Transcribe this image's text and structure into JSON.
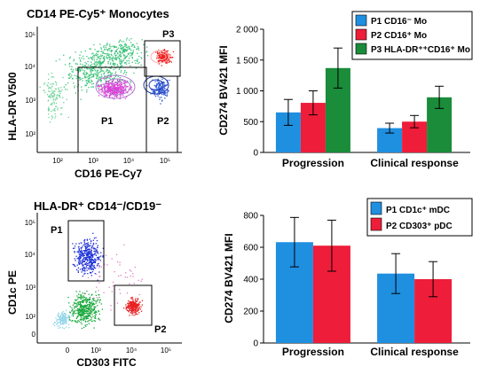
{
  "panels": {
    "tl": {
      "title": "CD14 PE-Cy5⁺ Monocytes",
      "xlabel": "CD16 PE-Cy7",
      "ylabel": "HLA-DR V500",
      "x_ticks": [
        "10²",
        "10³",
        "10⁴",
        "10⁵"
      ],
      "y_ticks": [
        "10⁵",
        "10⁴",
        "10³",
        "10²"
      ],
      "gates": [
        "P1",
        "P2",
        "P3"
      ]
    },
    "bl": {
      "title": "HLA-DR⁺ CD14⁻/CD19⁻",
      "xlabel": "CD303 FITC",
      "ylabel": "CD1c PE",
      "x_ticks": [
        "0",
        "10³",
        "10⁴",
        "10⁵"
      ],
      "y_ticks": [
        "10⁵",
        "10⁴",
        "10³",
        "10²",
        "0"
      ],
      "gates": [
        "P1",
        "P2"
      ]
    }
  },
  "chart_data": [
    {
      "type": "bar",
      "title": "",
      "xlabel": "",
      "ylabel": "CD274 BV421 MFI",
      "ylim": [
        0,
        2000
      ],
      "yticks": [
        "0",
        "500",
        "1 000",
        "1 500",
        "2 000"
      ],
      "categories": [
        "Progression",
        "Clinical response"
      ],
      "legend_position": "top-right",
      "series": [
        {
          "name": "P1 CD16⁻ Mo",
          "color": "#1f8fe0",
          "values": [
            650,
            395
          ],
          "errors": [
            210,
            80
          ]
        },
        {
          "name": "P2 CD16⁺ Mo",
          "color": "#ee1d3a",
          "values": [
            805,
            500
          ],
          "errors": [
            195,
            100
          ]
        },
        {
          "name": "P3 HLA-DR⁺⁺CD16⁺ Mo",
          "color": "#1a8c3a",
          "values": [
            1370,
            895
          ],
          "errors": [
            325,
            180
          ]
        }
      ]
    },
    {
      "type": "bar",
      "title": "",
      "xlabel": "",
      "ylabel": "CD274 BV421 MFI",
      "ylim": [
        0,
        800
      ],
      "yticks": [
        "0",
        "200",
        "400",
        "600",
        "800"
      ],
      "categories": [
        "Progression",
        "Clinical response"
      ],
      "legend_position": "top-right",
      "series": [
        {
          "name": "P1 CD1c⁺ mDC",
          "color": "#1f8fe0",
          "values": [
            632,
            435
          ],
          "errors": [
            155,
            125
          ]
        },
        {
          "name": "P2 CD303⁺ pDC",
          "color": "#ee1d3a",
          "values": [
            610,
            400
          ],
          "errors": [
            160,
            110
          ]
        }
      ]
    }
  ]
}
